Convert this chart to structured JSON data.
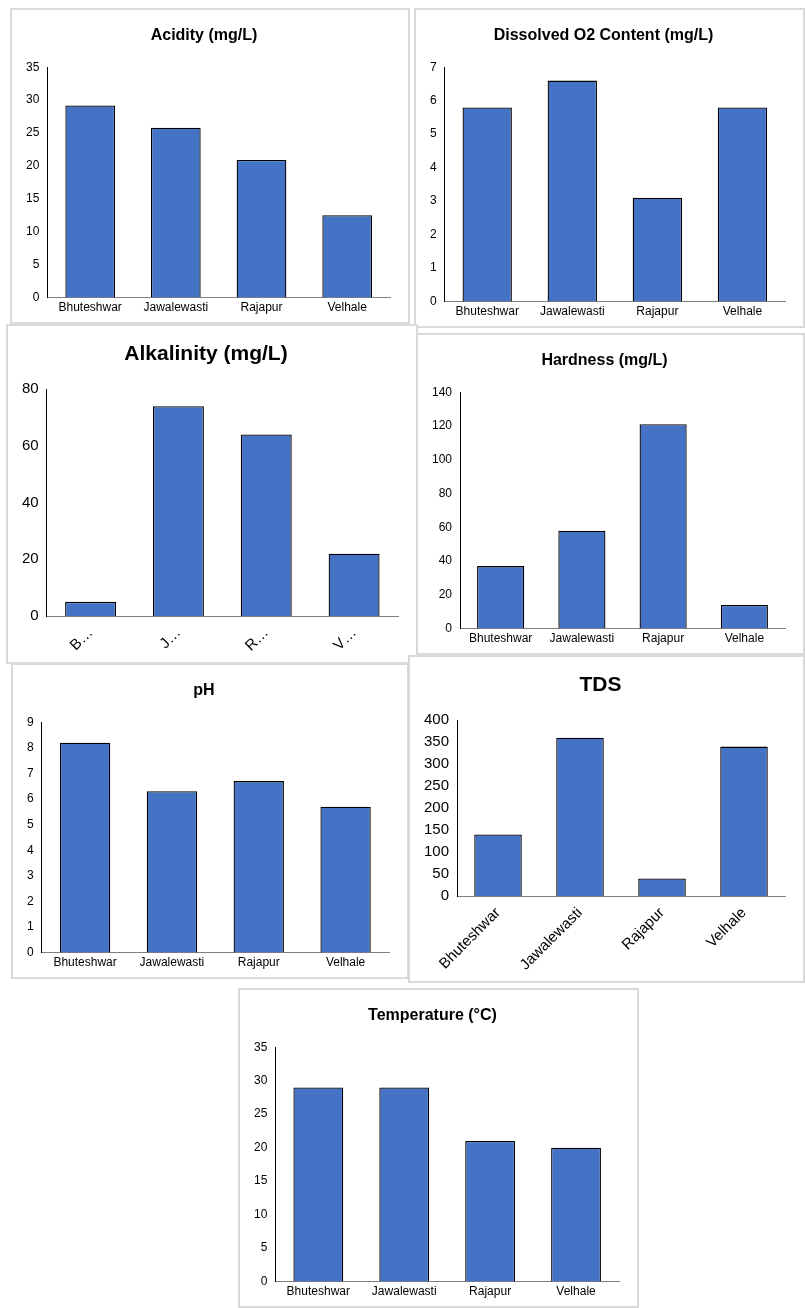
{
  "chart_data": [
    {
      "type": "bar",
      "title": "Acidity (mg/L)",
      "categories": [
        "Bhuteshwar",
        "Jawalewasti",
        "Rajapur",
        "Velhale"
      ],
      "values": [
        29.2,
        25.8,
        20.9,
        12.5
      ],
      "color": "#4472c4",
      "ylim": [
        0,
        35
      ],
      "yticks": [
        0,
        5,
        10,
        15,
        20,
        25,
        30,
        35
      ]
    },
    {
      "type": "bar",
      "title": "Dissolved O2 Content (mg/L)",
      "categories": [
        "Bhuteshwar",
        "Jawalewasti",
        "Rajapur",
        "Velhale"
      ],
      "values": [
        5.8,
        6.6,
        3.1,
        5.8
      ],
      "color": "#4472c4",
      "ylim": [
        0,
        7
      ],
      "yticks": [
        0,
        1,
        2,
        3,
        4,
        5,
        6,
        7
      ]
    },
    {
      "type": "bar",
      "title": "Alkalinity (mg/L)",
      "categories": [
        "B…",
        "J…",
        "R…",
        "V…"
      ],
      "values": [
        5,
        74,
        64,
        22
      ],
      "color": "#4472c4",
      "ylim": [
        0,
        80
      ],
      "yticks": [
        0,
        20,
        40,
        60,
        80
      ]
    },
    {
      "type": "bar",
      "title": "Hardness (mg/L)",
      "categories": [
        "Bhuteshwar",
        "Jawalewasti",
        "Rajapur",
        "Velhale"
      ],
      "values": [
        37,
        58,
        121,
        14
      ],
      "color": "#4472c4",
      "ylim": [
        0,
        140
      ],
      "yticks": [
        0,
        20,
        40,
        60,
        80,
        100,
        120,
        140
      ]
    },
    {
      "type": "bar",
      "title": "pH",
      "categories": [
        "Bhuteshwar",
        "Jawalewasti",
        "Rajapur",
        "Velhale"
      ],
      "values": [
        8.2,
        6.3,
        6.7,
        5.7
      ],
      "color": "#4472c4",
      "ylim": [
        0,
        9
      ],
      "yticks": [
        0,
        1,
        2,
        3,
        4,
        5,
        6,
        7,
        8,
        9
      ]
    },
    {
      "type": "bar",
      "title": "TDS",
      "categories": [
        "Bhuteshwar",
        "Jawalewasti",
        "Rajapur",
        "Velhale"
      ],
      "values": [
        140,
        360,
        40,
        340
      ],
      "color": "#4472c4",
      "ylim": [
        0,
        400
      ],
      "yticks": [
        0,
        50,
        100,
        150,
        200,
        250,
        300,
        350,
        400
      ]
    },
    {
      "type": "bar",
      "title": "Temperature (°C)",
      "categories": [
        "Bhuteshwar",
        "Jawalewasti",
        "Rajapur",
        "Velhale"
      ],
      "values": [
        29,
        29,
        21,
        20
      ],
      "color": "#4472c4",
      "ylim": [
        0,
        35
      ],
      "yticks": [
        0,
        5,
        10,
        15,
        20,
        25,
        30,
        35
      ]
    }
  ]
}
